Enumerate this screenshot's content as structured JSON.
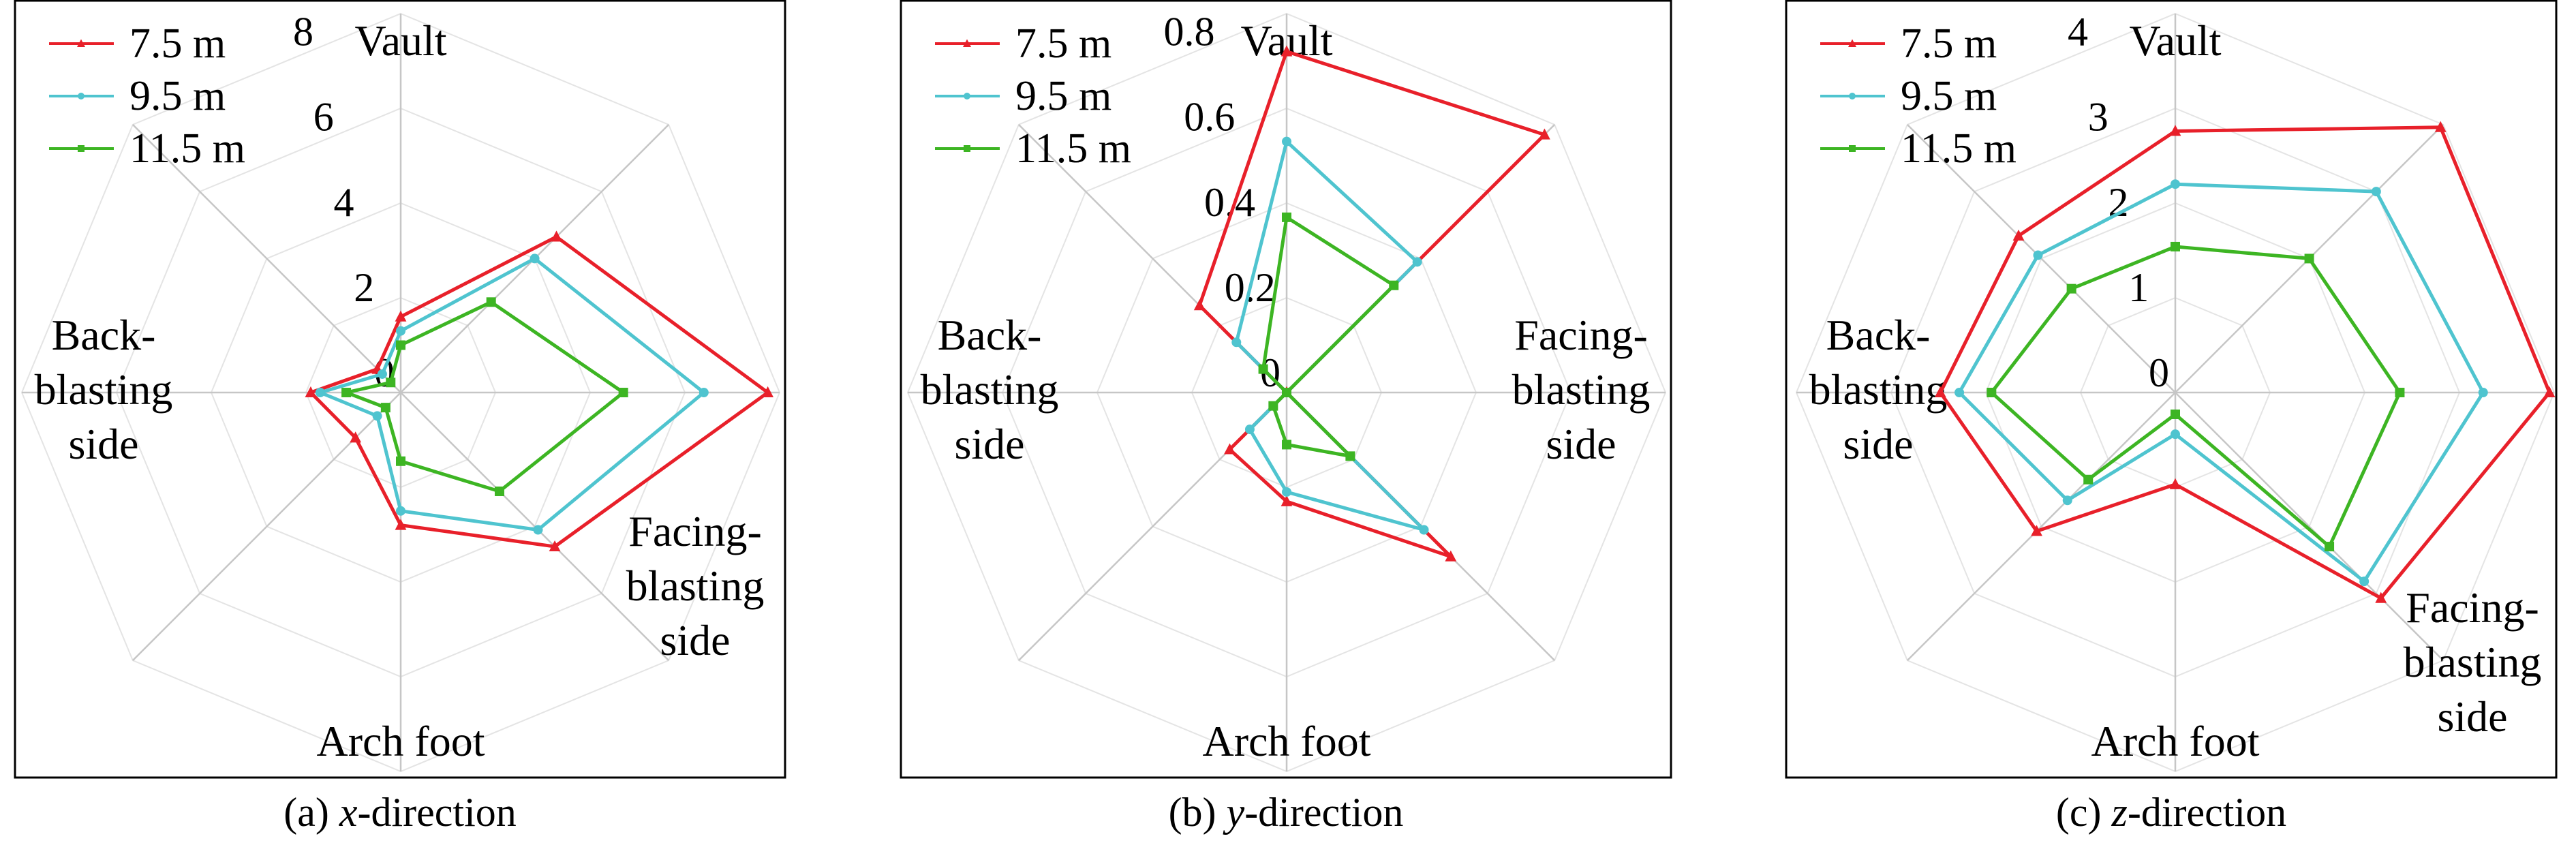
{
  "chart_data": [
    {
      "type": "radar",
      "caption": {
        "prefix": "(a) ",
        "italic": "x",
        "suffix": "-direction"
      },
      "range": [
        0,
        8
      ],
      "ticks": [
        "0",
        "2",
        "4",
        "6",
        "8"
      ],
      "axis_count": 8,
      "axis_labels": [
        {
          "axis": 0,
          "lines": [
            "Vault"
          ]
        },
        {
          "axis": 3,
          "lines": [
            "Facing-",
            "blasting",
            "side"
          ]
        },
        {
          "axis": 4,
          "lines": [
            "Arch foot"
          ]
        },
        {
          "axis": 6,
          "lines": [
            "Back-",
            "blasting",
            "side"
          ]
        }
      ],
      "series": [
        {
          "name": "7.5 m",
          "color": "#e8202a",
          "marker": "triangle",
          "values": [
            1.6,
            4.65,
            7.75,
            4.6,
            2.8,
            1.35,
            1.9,
            0.7
          ]
        },
        {
          "name": "9.5 m",
          "color": "#4fc4cf",
          "marker": "circle",
          "values": [
            1.3,
            4.0,
            6.4,
            4.1,
            2.5,
            0.7,
            1.7,
            0.55
          ]
        },
        {
          "name": "11.5 m",
          "color": "#3db523",
          "marker": "square",
          "values": [
            1.0,
            2.7,
            4.7,
            2.95,
            1.45,
            0.45,
            1.15,
            0.3
          ]
        }
      ]
    },
    {
      "type": "radar",
      "caption": {
        "prefix": "(b) ",
        "italic": "y",
        "suffix": "-direction"
      },
      "range": [
        0,
        0.8
      ],
      "ticks": [
        "0",
        "0.2",
        "0.4",
        "0.6",
        "0.8"
      ],
      "axis_count": 8,
      "axis_labels": [
        {
          "axis": 0,
          "lines": [
            "Vault"
          ]
        },
        {
          "axis": 2,
          "lines": [
            "Facing-",
            "blasting",
            "side"
          ]
        },
        {
          "axis": 4,
          "lines": [
            "Arch foot"
          ]
        },
        {
          "axis": 6,
          "lines": [
            "Back-",
            "blasting",
            "side"
          ]
        }
      ],
      "series": [
        {
          "name": "7.5 m",
          "color": "#e8202a",
          "marker": "triangle",
          "values": [
            0.72,
            0.77,
            0,
            0.49,
            0.23,
            0.17,
            0,
            0.26
          ]
        },
        {
          "name": "9.5 m",
          "color": "#4fc4cf",
          "marker": "circle",
          "values": [
            0.53,
            0.39,
            0,
            0.41,
            0.21,
            0.11,
            0,
            0.15
          ]
        },
        {
          "name": "11.5 m",
          "color": "#3db523",
          "marker": "square",
          "values": [
            0.37,
            0.32,
            0,
            0.19,
            0.11,
            0.04,
            0,
            0.07
          ]
        }
      ]
    },
    {
      "type": "radar",
      "caption": {
        "prefix": "(c) ",
        "italic": "z",
        "suffix": "-direction"
      },
      "range": [
        0,
        4
      ],
      "ticks": [
        "0",
        "1",
        "2",
        "3",
        "4"
      ],
      "axis_count": 8,
      "axis_labels": [
        {
          "axis": 0,
          "lines": [
            "Vault"
          ]
        },
        {
          "axis": 3,
          "lines": [
            "Facing-",
            "blasting",
            "side"
          ]
        },
        {
          "axis": 4,
          "lines": [
            "Arch foot"
          ]
        },
        {
          "axis": 6,
          "lines": [
            "Back-",
            "blasting",
            "side"
          ]
        }
      ],
      "series": [
        {
          "name": "7.5 m",
          "color": "#e8202a",
          "marker": "triangle",
          "values": [
            2.76,
            3.96,
            3.95,
            3.07,
            0.97,
            2.07,
            2.48,
            2.34
          ]
        },
        {
          "name": "9.5 m",
          "color": "#4fc4cf",
          "marker": "circle",
          "values": [
            2.2,
            3.0,
            3.25,
            2.82,
            0.44,
            1.61,
            2.28,
            2.05
          ]
        },
        {
          "name": "11.5 m",
          "color": "#3db523",
          "marker": "square",
          "values": [
            1.54,
            2.0,
            2.37,
            2.3,
            0.23,
            1.3,
            1.94,
            1.55
          ]
        }
      ]
    }
  ]
}
